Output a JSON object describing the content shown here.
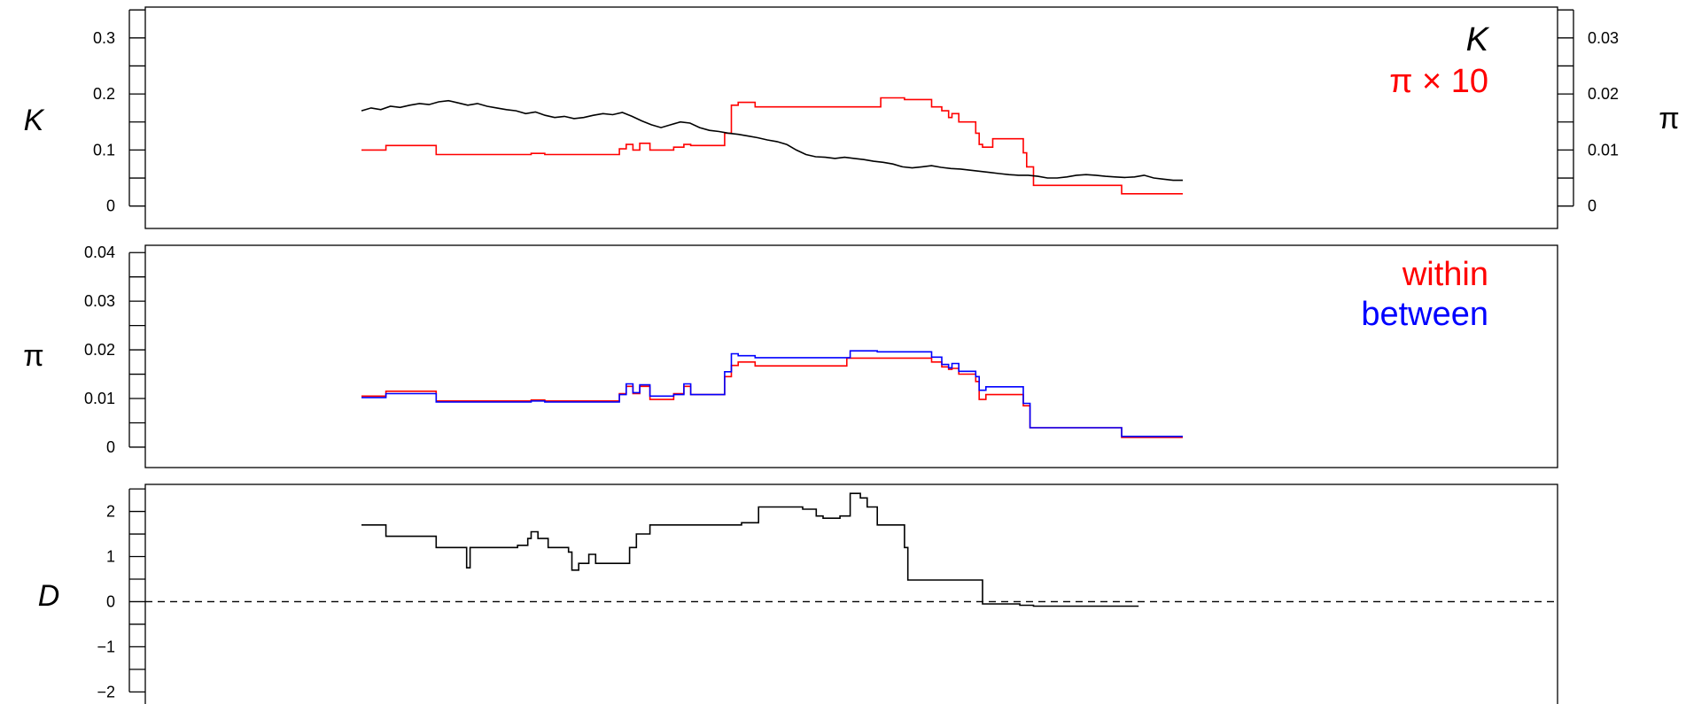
{
  "chart_data": [
    {
      "type": "line",
      "panel": "top",
      "ylabel_left": "K",
      "ylabel_right": "π",
      "ylim": [
        -0.04,
        0.355
      ],
      "ylim_right": [
        -0.004,
        0.0355
      ],
      "left_ticks": [
        0,
        0.1,
        0.2,
        0.3
      ],
      "left_tick_labels": [
        "0",
        "0.1",
        "0.2",
        "0.3"
      ],
      "left_minor_ticks": [
        0.05,
        0.15,
        0.25,
        0.35
      ],
      "right_ticks": [
        0,
        0.01,
        0.02,
        0.03
      ],
      "right_tick_labels": [
        "0",
        "0.01",
        "0.02",
        "0.03"
      ],
      "right_minor_ticks": [
        0.005,
        0.015,
        0.025,
        0.035
      ],
      "legend": [
        {
          "label": "K",
          "color": "#000000",
          "italic": true
        },
        {
          "label": "π × 10",
          "color": "#ff0000",
          "italic": false
        }
      ],
      "legend_position": "top-right",
      "series": [
        {
          "color": "#000000",
          "values": [
            0.17,
            0.175,
            0.172,
            0.178,
            0.176,
            0.18,
            0.183,
            0.181,
            0.186,
            0.188,
            0.184,
            0.18,
            0.183,
            0.178,
            0.175,
            0.172,
            0.17,
            0.165,
            0.168,
            0.162,
            0.158,
            0.16,
            0.156,
            0.158,
            0.162,
            0.165,
            0.163,
            0.167,
            0.16,
            0.152,
            0.145,
            0.14,
            0.145,
            0.15,
            0.148,
            0.14,
            0.135,
            0.133,
            0.13,
            0.128,
            0.125,
            0.122,
            0.118,
            0.115,
            0.11,
            0.1,
            0.092,
            0.088,
            0.087,
            0.085,
            0.087,
            0.085,
            0.083,
            0.08,
            0.078,
            0.075,
            0.07,
            0.068,
            0.07,
            0.072,
            0.069,
            0.067,
            0.066,
            0.064,
            0.062,
            0.06,
            0.058,
            0.056,
            0.055,
            0.055,
            0.053,
            0.05,
            0.05,
            0.052,
            0.055,
            0.056,
            0.055,
            0.053,
            0.052,
            0.051,
            0.052,
            0.055,
            0.05,
            0.048,
            0.046,
            0.046
          ]
        },
        {
          "color": "#ff0000",
          "steps": [
            [
              0,
              0.1
            ],
            [
              0.36,
              0.108
            ],
            [
              1.1,
              0.092
            ],
            [
              2.5,
              0.094
            ],
            [
              2.7,
              0.092
            ],
            [
              3.8,
              0.102
            ],
            [
              3.9,
              0.11
            ],
            [
              4.0,
              0.1
            ],
            [
              4.1,
              0.112
            ],
            [
              4.25,
              0.1
            ],
            [
              4.6,
              0.105
            ],
            [
              4.75,
              0.11
            ],
            [
              4.85,
              0.108
            ],
            [
              5.35,
              0.13
            ],
            [
              5.45,
              0.18
            ],
            [
              5.55,
              0.185
            ],
            [
              5.8,
              0.177
            ],
            [
              7.65,
              0.193
            ],
            [
              8.0,
              0.19
            ],
            [
              8.4,
              0.177
            ],
            [
              8.55,
              0.17
            ],
            [
              8.65,
              0.158
            ],
            [
              8.7,
              0.165
            ],
            [
              8.8,
              0.15
            ],
            [
              9.05,
              0.13
            ],
            [
              9.1,
              0.11
            ],
            [
              9.15,
              0.105
            ],
            [
              9.3,
              0.12
            ],
            [
              9.75,
              0.095
            ],
            [
              9.8,
              0.07
            ],
            [
              9.9,
              0.037
            ],
            [
              11.2,
              0.022
            ],
            [
              12.1,
              0.022
            ]
          ]
        }
      ]
    },
    {
      "type": "line",
      "panel": "middle",
      "ylabel": "π",
      "ylim": [
        -0.0042,
        0.0415
      ],
      "ticks": [
        0,
        0.01,
        0.02,
        0.03,
        0.04
      ],
      "tick_labels": [
        "0",
        "0.01",
        "0.02",
        "0.03",
        "0.04"
      ],
      "minor_ticks": [
        0.005,
        0.015,
        0.025,
        0.035
      ],
      "legend": [
        {
          "label": "within",
          "color": "#ff0000"
        },
        {
          "label": "between",
          "color": "#0000ff"
        }
      ],
      "legend_position": "top-right",
      "series": [
        {
          "name": "within",
          "color": "#ff0000",
          "steps": [
            [
              0,
              0.0105
            ],
            [
              0.36,
              0.0115
            ],
            [
              1.1,
              0.0095
            ],
            [
              2.5,
              0.0097
            ],
            [
              2.7,
              0.0095
            ],
            [
              3.8,
              0.011
            ],
            [
              3.9,
              0.0125
            ],
            [
              4.0,
              0.011
            ],
            [
              4.1,
              0.0125
            ],
            [
              4.25,
              0.0098
            ],
            [
              4.6,
              0.011
            ],
            [
              4.75,
              0.0125
            ],
            [
              4.85,
              0.0108
            ],
            [
              5.35,
              0.0145
            ],
            [
              5.45,
              0.0168
            ],
            [
              5.55,
              0.0175
            ],
            [
              5.8,
              0.0167
            ],
            [
              7.15,
              0.0183
            ],
            [
              8.4,
              0.0175
            ],
            [
              8.55,
              0.0165
            ],
            [
              8.65,
              0.016
            ],
            [
              8.7,
              0.0162
            ],
            [
              8.8,
              0.015
            ],
            [
              9.05,
              0.0135
            ],
            [
              9.1,
              0.0098
            ],
            [
              9.2,
              0.0108
            ],
            [
              9.75,
              0.0085
            ],
            [
              9.85,
              0.004
            ],
            [
              11.2,
              0.002
            ],
            [
              12.1,
              0.002
            ]
          ]
        },
        {
          "name": "between",
          "color": "#0000ff",
          "steps": [
            [
              0,
              0.0102
            ],
            [
              0.36,
              0.011
            ],
            [
              1.1,
              0.0093
            ],
            [
              2.5,
              0.0095
            ],
            [
              2.7,
              0.0093
            ],
            [
              3.8,
              0.0108
            ],
            [
              3.9,
              0.013
            ],
            [
              4.0,
              0.0112
            ],
            [
              4.1,
              0.0128
            ],
            [
              4.25,
              0.0105
            ],
            [
              4.6,
              0.0108
            ],
            [
              4.75,
              0.013
            ],
            [
              4.85,
              0.0108
            ],
            [
              5.35,
              0.0155
            ],
            [
              5.45,
              0.0192
            ],
            [
              5.55,
              0.0188
            ],
            [
              5.8,
              0.0184
            ],
            [
              7.2,
              0.0198
            ],
            [
              7.6,
              0.0196
            ],
            [
              8.4,
              0.0185
            ],
            [
              8.55,
              0.017
            ],
            [
              8.65,
              0.0163
            ],
            [
              8.7,
              0.0172
            ],
            [
              8.8,
              0.0156
            ],
            [
              9.05,
              0.0145
            ],
            [
              9.1,
              0.0117
            ],
            [
              9.2,
              0.0124
            ],
            [
              9.75,
              0.009
            ],
            [
              9.85,
              0.004
            ],
            [
              11.2,
              0.0022
            ],
            [
              12.1,
              0.0022
            ]
          ]
        }
      ]
    },
    {
      "type": "line",
      "panel": "bottom",
      "ylabel": "D",
      "ylim": [
        -2.7,
        2.6
      ],
      "ticks": [
        -2,
        -1,
        0,
        1,
        2
      ],
      "tick_labels": [
        "−2",
        "−1",
        "0",
        "1",
        "2"
      ],
      "minor_ticks": [
        -2.5,
        -1.5,
        -0.5,
        0.5,
        1.5,
        2.5
      ],
      "reference_line": {
        "y": 0,
        "style": "dashed"
      },
      "series": [
        {
          "color": "#000000",
          "steps": [
            [
              0,
              1.7
            ],
            [
              0.36,
              1.45
            ],
            [
              1.1,
              1.2
            ],
            [
              1.55,
              0.75
            ],
            [
              1.6,
              1.2
            ],
            [
              2.3,
              1.25
            ],
            [
              2.45,
              1.4
            ],
            [
              2.5,
              1.55
            ],
            [
              2.6,
              1.4
            ],
            [
              2.75,
              1.2
            ],
            [
              3.05,
              1.1
            ],
            [
              3.1,
              0.7
            ],
            [
              3.2,
              0.85
            ],
            [
              3.35,
              1.05
            ],
            [
              3.45,
              0.85
            ],
            [
              3.95,
              1.2
            ],
            [
              4.05,
              1.5
            ],
            [
              4.25,
              1.7
            ],
            [
              5.6,
              1.75
            ],
            [
              5.85,
              2.1
            ],
            [
              6.5,
              2.05
            ],
            [
              6.7,
              1.9
            ],
            [
              6.8,
              1.85
            ],
            [
              7.05,
              1.9
            ],
            [
              7.2,
              2.4
            ],
            [
              7.35,
              2.3
            ],
            [
              7.45,
              2.1
            ],
            [
              7.6,
              1.7
            ],
            [
              8.0,
              1.2
            ],
            [
              8.05,
              0.48
            ],
            [
              9.1,
              0.48
            ],
            [
              9.15,
              -0.05
            ],
            [
              9.7,
              -0.08
            ],
            [
              9.9,
              -0.1
            ]
          ]
        }
      ]
    }
  ]
}
